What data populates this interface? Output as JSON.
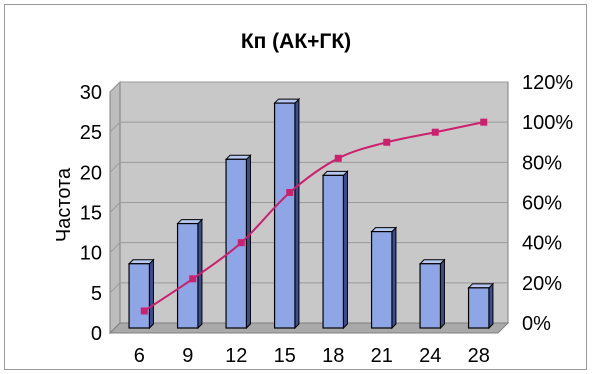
{
  "chart_data": {
    "type": "bar",
    "title": "Кп (АК+ГК)",
    "xlabel": "",
    "ylabel": "Частота",
    "categories": [
      "6",
      "9",
      "12",
      "15",
      "18",
      "21",
      "24",
      "28"
    ],
    "series": [
      {
        "values": [
          8,
          13,
          21,
          28,
          19,
          12,
          8,
          5
        ],
        "type": "bar",
        "axis": "left",
        "color": "#8ea6e6"
      },
      {
        "values": [
          6,
          22,
          40,
          65,
          82,
          90,
          95,
          100
        ],
        "type": "line",
        "axis": "right",
        "color": "#cc1f6e"
      }
    ],
    "ylim": [
      0,
      30
    ],
    "y_ticks": [
      "0",
      "5",
      "10",
      "15",
      "20",
      "25",
      "30"
    ],
    "y2lim": [
      0,
      120
    ],
    "y2_ticks": [
      "0%",
      "20%",
      "40%",
      "60%",
      "80%",
      "100%",
      "120%"
    ],
    "grid": true,
    "plot_background": "#c8c8c8",
    "legend": "none"
  }
}
